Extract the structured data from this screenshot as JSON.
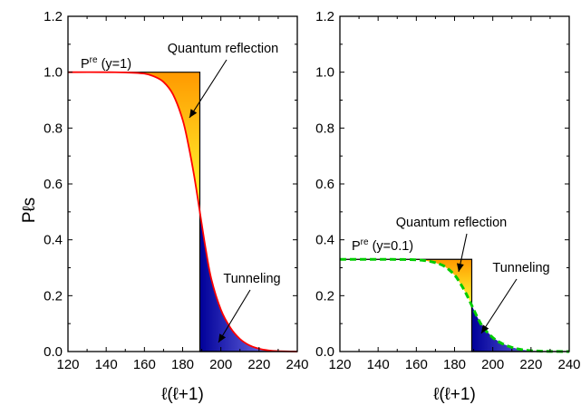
{
  "chart_data": [
    {
      "type": "area",
      "panel": "left",
      "xlabel": "ℓ(ℓ+1)",
      "ylabel": "Pℓs",
      "xlim": [
        120,
        240
      ],
      "ylim": [
        0,
        1.2
      ],
      "x_ticks": [
        "120",
        "140",
        "160",
        "180",
        "200",
        "220",
        "240"
      ],
      "y_ticks": [
        "0.0",
        "0.2",
        "0.4",
        "0.6",
        "0.8",
        "1.0",
        "1.2"
      ],
      "step_threshold": 189,
      "series": [
        {
          "color": "#ff0000",
          "style": "solid",
          "x": [
            120,
            140,
            150,
            160,
            165,
            170,
            175,
            180,
            183,
            186,
            189,
            192,
            195,
            200,
            205,
            210,
            215,
            220,
            225,
            230,
            240
          ],
          "y": [
            1.0,
            1.0,
            0.999,
            0.995,
            0.985,
            0.965,
            0.92,
            0.83,
            0.74,
            0.63,
            0.5,
            0.37,
            0.26,
            0.15,
            0.085,
            0.045,
            0.022,
            0.01,
            0.004,
            0.0015,
            0.0
          ]
        }
      ],
      "step": {
        "color": "#000000",
        "x": [
          120,
          189,
          189,
          240
        ],
        "y": [
          1.0,
          1.0,
          0.0,
          0.0
        ]
      },
      "fill_reflection": {
        "colors": [
          "#ff9900",
          "#ffff33"
        ]
      },
      "fill_tunneling": {
        "colors": [
          "#000099",
          "#9999ff"
        ]
      },
      "annotations": {
        "reflection": "Quantum reflection",
        "tunneling": "Tunneling",
        "pre_main": "P",
        "pre_sup": "re",
        "pre_param": " (y=1)"
      }
    },
    {
      "type": "area",
      "panel": "right",
      "xlabel": "ℓ(ℓ+1)",
      "xlim": [
        120,
        240
      ],
      "ylim": [
        0,
        1.2
      ],
      "x_ticks": [
        "120",
        "140",
        "160",
        "180",
        "200",
        "220",
        "240"
      ],
      "y_ticks": [
        "0.0",
        "0.2",
        "0.4",
        "0.6",
        "0.8",
        "1.0",
        "1.2"
      ],
      "step_threshold": 189,
      "series": [
        {
          "color": "#00cc00",
          "style": "dashed",
          "x": [
            120,
            140,
            150,
            160,
            165,
            170,
            175,
            180,
            183,
            186,
            189,
            192,
            195,
            200,
            205,
            210,
            215,
            220,
            225,
            230,
            240
          ],
          "y": [
            0.33,
            0.33,
            0.3297,
            0.3284,
            0.325,
            0.318,
            0.304,
            0.274,
            0.244,
            0.208,
            0.165,
            0.122,
            0.086,
            0.05,
            0.028,
            0.015,
            0.007,
            0.003,
            0.0013,
            0.0005,
            0.0
          ]
        }
      ],
      "step": {
        "color": "#000000",
        "x": [
          120,
          189,
          189,
          240
        ],
        "y": [
          0.33,
          0.33,
          0.0,
          0.0
        ]
      },
      "fill_reflection": {
        "colors": [
          "#ff9900",
          "#ffff33"
        ]
      },
      "fill_tunneling": {
        "colors": [
          "#000099",
          "#9999ff"
        ]
      },
      "annotations": {
        "reflection": "Quantum reflection",
        "tunneling": "Tunneling",
        "pre_main": "P",
        "pre_sup": "re",
        "pre_param": " (y=0.1)"
      }
    }
  ]
}
